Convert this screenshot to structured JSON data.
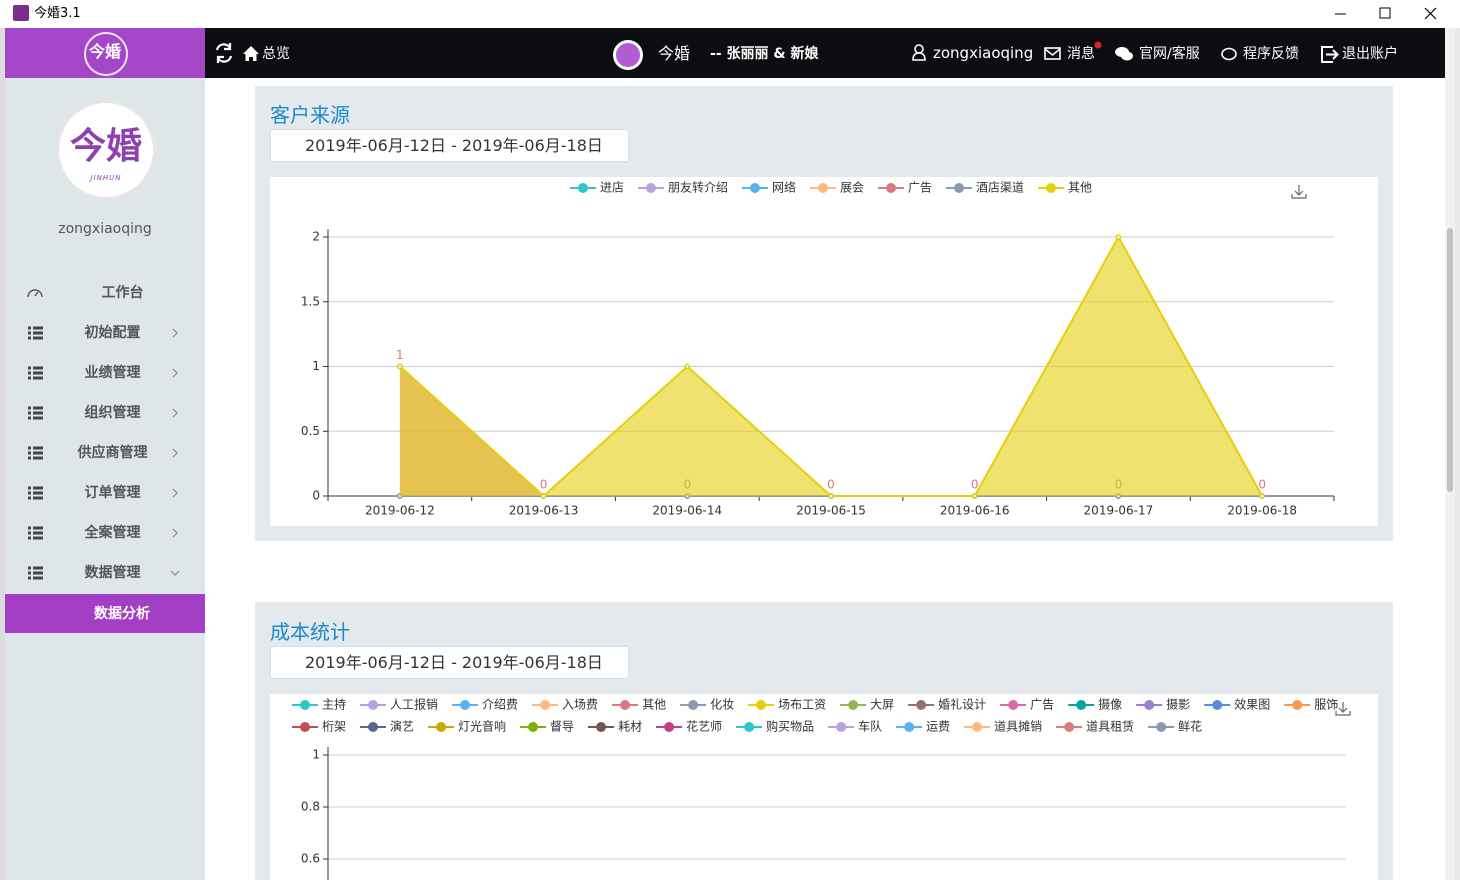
{
  "window": {
    "title": "今婚3.1"
  },
  "topbar": {
    "home": "总览",
    "brand": "今婚",
    "couple": "-- 张丽丽 & 新娘",
    "user": "zongxiaoqing",
    "messages": "消息",
    "service": "官网/客服",
    "feedback": "程序反馈",
    "logout": "退出账户"
  },
  "sidebar": {
    "logo": "今婚",
    "avatar": "今婚",
    "avatar_sub": "JINHUN",
    "username": "zongxiaoqing",
    "menu": [
      {
        "label": "工作台"
      },
      {
        "label": "初始配置",
        "arrow": "right"
      },
      {
        "label": "业绩管理",
        "arrow": "right"
      },
      {
        "label": "组织管理",
        "arrow": "right"
      },
      {
        "label": "供应商管理",
        "arrow": "right"
      },
      {
        "label": "订单管理",
        "arrow": "right"
      },
      {
        "label": "全案管理",
        "arrow": "right"
      },
      {
        "label": "数据管理",
        "arrow": "down"
      }
    ],
    "submenu": [
      "数据分析"
    ]
  },
  "panels": [
    {
      "title": "客户来源",
      "date_range": "2019年-06月-12日 - 2019年-06月-18日"
    },
    {
      "title": "成本统计",
      "date_range": "2019年-06月-12日 - 2019年-06月-18日"
    }
  ],
  "chart_data": [
    {
      "type": "area",
      "legend": "top",
      "grid": true,
      "categories": [
        "2019-06-12",
        "2019-06-13",
        "2019-06-14",
        "2019-06-15",
        "2019-06-16",
        "2019-06-17",
        "2019-06-18"
      ],
      "ylim": [
        0,
        2
      ],
      "yticks": [
        0,
        0.5,
        1,
        1.5,
        2
      ],
      "series": [
        {
          "name": "进店",
          "color": "#2ec7c9",
          "values": [
            0,
            0,
            0,
            0,
            0,
            0,
            0
          ]
        },
        {
          "name": "朋友转介绍",
          "color": "#b6a2de",
          "values": [
            0,
            0,
            0,
            0,
            0,
            0,
            0
          ]
        },
        {
          "name": "网络",
          "color": "#5ab1ef",
          "values": [
            0,
            0,
            0,
            0,
            0,
            0,
            0
          ]
        },
        {
          "name": "展会",
          "color": "#ffb980",
          "values": [
            0,
            0,
            0,
            0,
            0,
            0,
            0
          ]
        },
        {
          "name": "广告",
          "color": "#d87a80",
          "values": [
            1,
            0,
            0,
            0,
            0,
            0,
            0
          ],
          "show_labels": true
        },
        {
          "name": "酒店渠道",
          "color": "#8d98b3",
          "values": [
            0,
            0,
            0,
            0,
            0,
            0,
            0
          ]
        },
        {
          "name": "其他",
          "color": "#e5cf0d",
          "values": [
            1,
            0,
            1,
            0,
            0,
            2,
            0
          ]
        }
      ]
    },
    {
      "type": "area",
      "legend": "top",
      "grid": true,
      "ylim": [
        0,
        1
      ],
      "yticks": [
        0.6,
        0.8,
        1
      ],
      "series": [
        {
          "name": "主持",
          "color": "#2ec7c9"
        },
        {
          "name": "人工报销",
          "color": "#b6a2de"
        },
        {
          "name": "介绍费",
          "color": "#5ab1ef"
        },
        {
          "name": "入场费",
          "color": "#ffb980"
        },
        {
          "name": "其他",
          "color": "#d87a80"
        },
        {
          "name": "化妆",
          "color": "#8d98b3"
        },
        {
          "name": "场布工资",
          "color": "#e5cf0d"
        },
        {
          "name": "大屏",
          "color": "#97b552"
        },
        {
          "name": "婚礼设计",
          "color": "#95706d"
        },
        {
          "name": "广告",
          "color": "#dc69aa"
        },
        {
          "name": "摄像",
          "color": "#07a2a4"
        },
        {
          "name": "摄影",
          "color": "#9a7fd1"
        },
        {
          "name": "效果图",
          "color": "#588dd5"
        },
        {
          "name": "服饰",
          "color": "#f5994e"
        },
        {
          "name": "桁架",
          "color": "#c05050"
        },
        {
          "name": "演艺",
          "color": "#59678c"
        },
        {
          "name": "灯光音响",
          "color": "#c9ab00"
        },
        {
          "name": "督导",
          "color": "#7eb00a"
        },
        {
          "name": "耗材",
          "color": "#6f5553"
        },
        {
          "name": "花艺师",
          "color": "#c14089"
        },
        {
          "name": "购买物品",
          "color": "#2ec7c9"
        },
        {
          "name": "车队",
          "color": "#b6a2de"
        },
        {
          "name": "运费",
          "color": "#5ab1ef"
        },
        {
          "name": "道具摊销",
          "color": "#ffb980"
        },
        {
          "name": "道具租赁",
          "color": "#d87a80"
        },
        {
          "name": "鲜花",
          "color": "#8d98b3"
        }
      ]
    }
  ]
}
